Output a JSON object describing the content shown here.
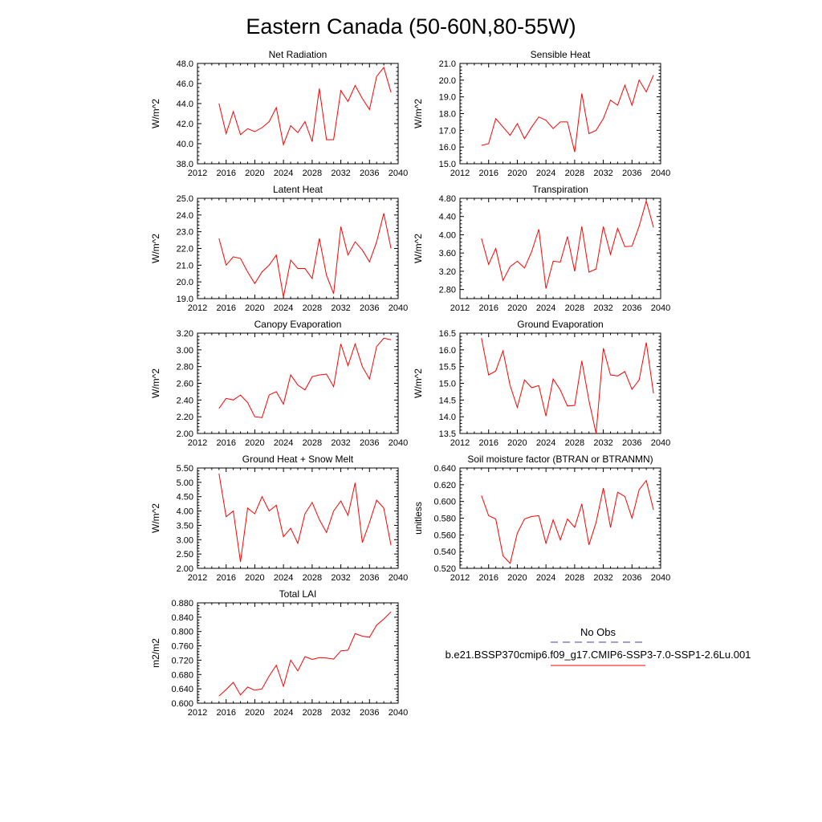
{
  "title": "Eastern Canada (50-60N,80-55W)",
  "legend": {
    "entries": [
      {
        "label": "No Obs",
        "color": "#3f3fbf",
        "dash": true
      },
      {
        "label": "b.e21.BSSP370cmip6.f09_g17.CMIP6-SSP3-7.0-SSP1-2.6Lu.001",
        "color": "#ff0000",
        "dash": false
      }
    ]
  },
  "colors": {
    "series": "#ff0000",
    "axis": "#000000"
  },
  "chart_data": [
    {
      "type": "line",
      "title": "Net Radiation",
      "ylabel": "W/m^2",
      "xlim": [
        2012,
        2040
      ],
      "xticks": [
        "2012",
        "2016",
        "2020",
        "2024",
        "2028",
        "2032",
        "2036",
        "2040"
      ],
      "ylim": [
        38.0,
        48.0
      ],
      "yticks": [
        "38.0",
        "40.0",
        "42.0",
        "44.0",
        "46.0",
        "48.0"
      ],
      "x": [
        2015,
        2016,
        2017,
        2018,
        2019,
        2020,
        2021,
        2022,
        2023,
        2024,
        2025,
        2026,
        2027,
        2028,
        2029,
        2030,
        2031,
        2032,
        2033,
        2034,
        2035,
        2036,
        2037,
        2038,
        2039
      ],
      "values": [
        44.0,
        41.0,
        43.2,
        40.9,
        41.5,
        41.2,
        41.6,
        42.2,
        43.6,
        39.9,
        41.8,
        41.1,
        42.2,
        40.2,
        45.5,
        40.4,
        40.4,
        45.3,
        44.2,
        45.8,
        44.5,
        43.4,
        46.7,
        47.6,
        45.1
      ]
    },
    {
      "type": "line",
      "title": "Sensible Heat",
      "ylabel": "W/m^2",
      "xlim": [
        2012,
        2040
      ],
      "xticks": [
        "2012",
        "2016",
        "2020",
        "2024",
        "2028",
        "2032",
        "2036",
        "2040"
      ],
      "ylim": [
        15.0,
        21.0
      ],
      "yticks": [
        "15.0",
        "16.0",
        "17.0",
        "18.0",
        "19.0",
        "20.0",
        "21.0"
      ],
      "x": [
        2015,
        2016,
        2017,
        2018,
        2019,
        2020,
        2021,
        2022,
        2023,
        2024,
        2025,
        2026,
        2027,
        2028,
        2029,
        2030,
        2031,
        2032,
        2033,
        2034,
        2035,
        2036,
        2037,
        2038,
        2039
      ],
      "values": [
        16.1,
        16.2,
        17.7,
        17.2,
        16.7,
        17.4,
        16.5,
        17.2,
        17.8,
        17.6,
        17.1,
        17.5,
        17.5,
        15.7,
        19.2,
        16.8,
        17.0,
        17.7,
        18.8,
        18.5,
        19.7,
        18.5,
        20.0,
        19.3,
        20.3
      ]
    },
    {
      "type": "line",
      "title": "Latent Heat",
      "ylabel": "W/m^2",
      "xlim": [
        2012,
        2040
      ],
      "xticks": [
        "2012",
        "2016",
        "2020",
        "2024",
        "2028",
        "2032",
        "2036",
        "2040"
      ],
      "ylim": [
        19.0,
        25.0
      ],
      "yticks": [
        "19.0",
        "20.0",
        "21.0",
        "22.0",
        "23.0",
        "24.0",
        "25.0"
      ],
      "x": [
        2015,
        2016,
        2017,
        2018,
        2019,
        2020,
        2021,
        2022,
        2023,
        2024,
        2025,
        2026,
        2027,
        2028,
        2029,
        2030,
        2031,
        2032,
        2033,
        2034,
        2035,
        2036,
        2037,
        2038,
        2039
      ],
      "values": [
        22.6,
        21.0,
        21.5,
        21.4,
        20.6,
        19.9,
        20.6,
        21.0,
        21.6,
        19.1,
        21.3,
        20.8,
        20.8,
        20.2,
        22.6,
        20.4,
        19.3,
        23.3,
        21.6,
        22.4,
        21.9,
        21.2,
        22.4,
        24.1,
        22.0
      ]
    },
    {
      "type": "line",
      "title": "Transpiration",
      "ylabel": "W/m^2",
      "xlim": [
        2012,
        2040
      ],
      "xticks": [
        "2012",
        "2016",
        "2020",
        "2024",
        "2028",
        "2032",
        "2036",
        "2040"
      ],
      "ylim": [
        2.6,
        4.8
      ],
      "yticks": [
        "2.80",
        "3.20",
        "3.60",
        "4.00",
        "4.40",
        "4.80"
      ],
      "ytick_values": [
        2.8,
        3.2,
        3.6,
        4.0,
        4.4,
        4.8
      ],
      "x": [
        2015,
        2016,
        2017,
        2018,
        2019,
        2020,
        2021,
        2022,
        2023,
        2024,
        2025,
        2026,
        2027,
        2028,
        2029,
        2030,
        2031,
        2032,
        2033,
        2034,
        2035,
        2036,
        2037,
        2038,
        2039
      ],
      "values": [
        3.92,
        3.35,
        3.7,
        3.0,
        3.3,
        3.42,
        3.27,
        3.63,
        4.12,
        2.82,
        3.42,
        3.4,
        3.96,
        3.2,
        4.18,
        3.18,
        3.25,
        4.18,
        3.57,
        4.14,
        3.74,
        3.75,
        4.19,
        4.74,
        4.16
      ]
    },
    {
      "type": "line",
      "title": "Canopy Evaporation",
      "ylabel": "W/m^2",
      "xlim": [
        2012,
        2040
      ],
      "xticks": [
        "2012",
        "2016",
        "2020",
        "2024",
        "2028",
        "2032",
        "2036",
        "2040"
      ],
      "ylim": [
        2.0,
        3.2
      ],
      "yticks": [
        "2.00",
        "2.20",
        "2.40",
        "2.60",
        "2.80",
        "3.00",
        "3.20"
      ],
      "x": [
        2015,
        2016,
        2017,
        2018,
        2019,
        2020,
        2021,
        2022,
        2023,
        2024,
        2025,
        2026,
        2027,
        2028,
        2029,
        2030,
        2031,
        2032,
        2033,
        2034,
        2035,
        2036,
        2037,
        2038,
        2039
      ],
      "values": [
        2.3,
        2.42,
        2.4,
        2.46,
        2.37,
        2.2,
        2.19,
        2.46,
        2.5,
        2.35,
        2.7,
        2.58,
        2.52,
        2.68,
        2.7,
        2.71,
        2.56,
        3.07,
        2.81,
        3.07,
        2.8,
        2.65,
        3.04,
        3.14,
        3.12
      ]
    },
    {
      "type": "line",
      "title": "Ground Evaporation",
      "ylabel": "W/m^2",
      "xlim": [
        2012,
        2040
      ],
      "xticks": [
        "2012",
        "2016",
        "2020",
        "2024",
        "2028",
        "2032",
        "2036",
        "2040"
      ],
      "ylim": [
        13.5,
        16.5
      ],
      "yticks": [
        "13.5",
        "14.0",
        "14.5",
        "15.0",
        "15.5",
        "16.0",
        "16.5"
      ],
      "x": [
        2015,
        2016,
        2017,
        2018,
        2019,
        2020,
        2021,
        2022,
        2023,
        2024,
        2025,
        2026,
        2027,
        2028,
        2029,
        2030,
        2031,
        2032,
        2033,
        2034,
        2035,
        2036,
        2037,
        2038,
        2039
      ],
      "values": [
        16.35,
        15.25,
        15.37,
        15.97,
        14.93,
        14.28,
        15.1,
        14.87,
        14.93,
        14.02,
        15.13,
        14.8,
        14.32,
        14.34,
        15.67,
        14.48,
        13.5,
        16.05,
        15.25,
        15.22,
        15.35,
        14.82,
        15.1,
        16.22,
        14.7
      ]
    },
    {
      "type": "line",
      "title": "Ground Heat + Snow Melt",
      "ylabel": "W/m^2",
      "xlim": [
        2012,
        2040
      ],
      "xticks": [
        "2012",
        "2016",
        "2020",
        "2024",
        "2028",
        "2032",
        "2036",
        "2040"
      ],
      "ylim": [
        2.0,
        5.5
      ],
      "yticks": [
        "2.00",
        "2.50",
        "3.00",
        "3.50",
        "4.00",
        "4.50",
        "5.00",
        "5.50"
      ],
      "x": [
        2015,
        2016,
        2017,
        2018,
        2019,
        2020,
        2021,
        2022,
        2023,
        2024,
        2025,
        2026,
        2027,
        2028,
        2029,
        2030,
        2031,
        2032,
        2033,
        2034,
        2035,
        2036,
        2037,
        2038,
        2039
      ],
      "values": [
        5.3,
        3.8,
        4.0,
        2.22,
        4.1,
        3.9,
        4.5,
        4.0,
        4.2,
        3.1,
        3.4,
        2.87,
        3.9,
        4.3,
        3.7,
        3.25,
        4.0,
        4.35,
        3.85,
        4.98,
        2.9,
        3.6,
        4.38,
        4.1,
        2.8
      ]
    },
    {
      "type": "line",
      "title": "Soil moisture factor (BTRAN or BTRANMN)",
      "ylabel": "unitless",
      "xlim": [
        2012,
        2040
      ],
      "xticks": [
        "2012",
        "2016",
        "2020",
        "2024",
        "2028",
        "2032",
        "2036",
        "2040"
      ],
      "ylim": [
        0.52,
        0.64
      ],
      "yticks": [
        "0.520",
        "0.540",
        "0.560",
        "0.580",
        "0.600",
        "0.620",
        "0.640"
      ],
      "x": [
        2015,
        2016,
        2017,
        2018,
        2019,
        2020,
        2021,
        2022,
        2023,
        2024,
        2025,
        2026,
        2027,
        2028,
        2029,
        2030,
        2031,
        2032,
        2033,
        2034,
        2035,
        2036,
        2037,
        2038,
        2039
      ],
      "values": [
        0.607,
        0.583,
        0.579,
        0.535,
        0.526,
        0.562,
        0.579,
        0.582,
        0.583,
        0.55,
        0.578,
        0.554,
        0.579,
        0.569,
        0.597,
        0.548,
        0.575,
        0.616,
        0.569,
        0.611,
        0.606,
        0.58,
        0.614,
        0.625,
        0.59
      ]
    },
    {
      "type": "line",
      "title": "Total LAI",
      "ylabel": "m2/m2",
      "xlim": [
        2012,
        2040
      ],
      "xticks": [
        "2012",
        "2016",
        "2020",
        "2024",
        "2028",
        "2032",
        "2036",
        "2040"
      ],
      "ylim": [
        0.6,
        0.88
      ],
      "yticks": [
        "0.600",
        "0.640",
        "0.680",
        "0.720",
        "0.760",
        "0.800",
        "0.840",
        "0.880"
      ],
      "x": [
        2015,
        2016,
        2017,
        2018,
        2019,
        2020,
        2021,
        2022,
        2023,
        2024,
        2025,
        2026,
        2027,
        2028,
        2029,
        2030,
        2031,
        2032,
        2033,
        2034,
        2035,
        2036,
        2037,
        2038,
        2039
      ],
      "values": [
        0.62,
        0.638,
        0.658,
        0.623,
        0.645,
        0.636,
        0.64,
        0.676,
        0.706,
        0.647,
        0.72,
        0.69,
        0.73,
        0.722,
        0.727,
        0.726,
        0.723,
        0.746,
        0.748,
        0.794,
        0.787,
        0.784,
        0.818,
        0.835,
        0.855
      ]
    }
  ]
}
